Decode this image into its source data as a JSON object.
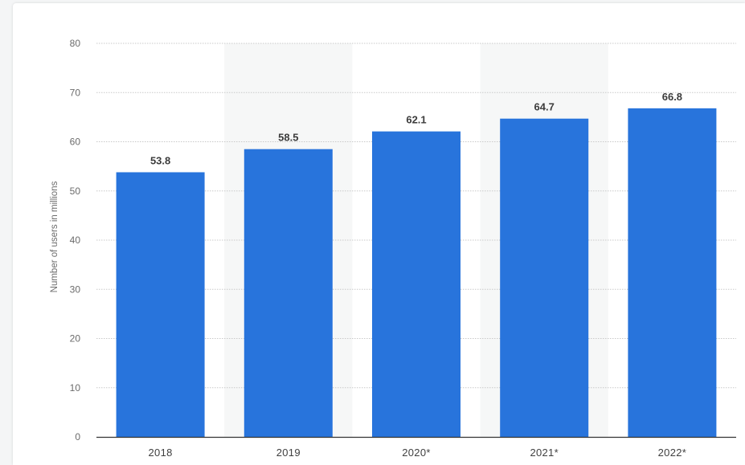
{
  "chart_data": {
    "type": "bar",
    "categories": [
      "2018",
      "2019",
      "2020*",
      "2021*",
      "2022*"
    ],
    "values": [
      53.8,
      58.5,
      62.1,
      64.7,
      66.8
    ],
    "value_labels": [
      "53.8",
      "58.5",
      "62.1",
      "64.7",
      "66.8"
    ],
    "title": "",
    "xlabel": "",
    "ylabel": "Number of users in millions",
    "ylim": [
      0,
      80
    ],
    "yticks": [
      0,
      10,
      20,
      30,
      40,
      50,
      60,
      70,
      80
    ],
    "grid": true,
    "legend": "none",
    "colors": {
      "bar": "#2874dc",
      "band": "#f6f7f7",
      "grid": "#c9c9c9",
      "axis": "#333333"
    }
  }
}
